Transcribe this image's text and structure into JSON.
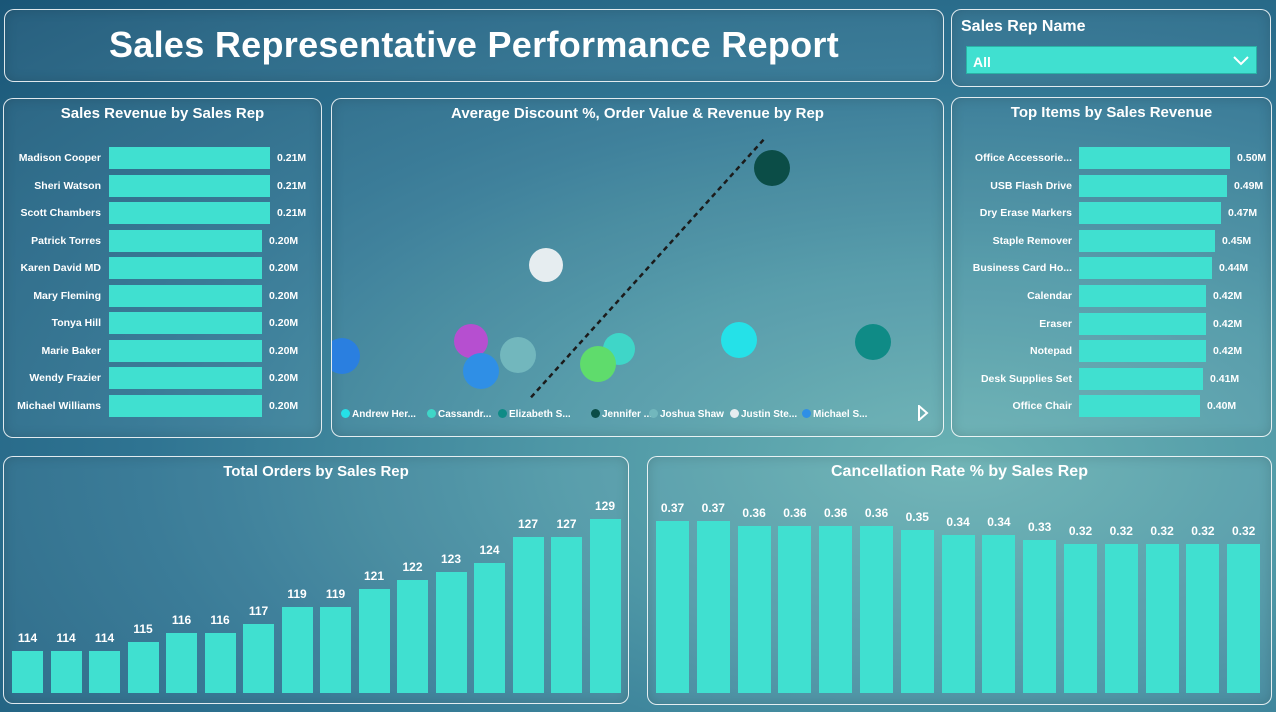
{
  "header": {
    "title": "Sales Representative Performance Report"
  },
  "slicer": {
    "label": "Sales Rep Name",
    "selected": "All"
  },
  "revenue_chart": {
    "title": "Sales Revenue by Sales Rep",
    "rows": [
      {
        "name": "Madison Cooper",
        "value": 0.21,
        "label": "0.21M"
      },
      {
        "name": "Sheri Watson",
        "value": 0.21,
        "label": "0.21M"
      },
      {
        "name": "Scott Chambers",
        "value": 0.21,
        "label": "0.21M"
      },
      {
        "name": "Patrick Torres",
        "value": 0.2,
        "label": "0.20M"
      },
      {
        "name": "Karen David MD",
        "value": 0.2,
        "label": "0.20M"
      },
      {
        "name": "Mary Fleming",
        "value": 0.2,
        "label": "0.20M"
      },
      {
        "name": "Tonya Hill",
        "value": 0.2,
        "label": "0.20M"
      },
      {
        "name": "Marie Baker",
        "value": 0.2,
        "label": "0.20M"
      },
      {
        "name": "Wendy Frazier",
        "value": 0.2,
        "label": "0.20M"
      },
      {
        "name": "Michael Williams",
        "value": 0.2,
        "label": "0.20M"
      }
    ]
  },
  "scatter_chart": {
    "title": "Average Discount %, Order Value & Revenue by Rep",
    "legend": [
      {
        "name": "Andrew Her...",
        "color": "#25e1e8"
      },
      {
        "name": "Cassandr...",
        "color": "#3fd6c8"
      },
      {
        "name": "Elizabeth S...",
        "color": "#0f8b86"
      },
      {
        "name": "Jennifer ...",
        "color": "#0b4d47"
      },
      {
        "name": "Joshua Shaw",
        "color": "#72b7bd"
      },
      {
        "name": "Justin Ste...",
        "color": "#e6edf0"
      },
      {
        "name": "Michael S...",
        "color": "#2f8fe6"
      }
    ]
  },
  "items_chart": {
    "title": "Top Items by Sales Revenue",
    "rows": [
      {
        "name": "Office Accessorie...",
        "value": 0.5,
        "label": "0.50M"
      },
      {
        "name": "USB Flash Drive",
        "value": 0.49,
        "label": "0.49M"
      },
      {
        "name": "Dry Erase Markers",
        "value": 0.47,
        "label": "0.47M"
      },
      {
        "name": "Staple Remover",
        "value": 0.45,
        "label": "0.45M"
      },
      {
        "name": "Business Card Ho...",
        "value": 0.44,
        "label": "0.44M"
      },
      {
        "name": "Calendar",
        "value": 0.42,
        "label": "0.42M"
      },
      {
        "name": "Eraser",
        "value": 0.42,
        "label": "0.42M"
      },
      {
        "name": "Notepad",
        "value": 0.42,
        "label": "0.42M"
      },
      {
        "name": "Desk Supplies Set",
        "value": 0.41,
        "label": "0.41M"
      },
      {
        "name": "Office Chair",
        "value": 0.4,
        "label": "0.40M"
      }
    ]
  },
  "orders_chart": {
    "title": "Total Orders by Sales Rep",
    "values": [
      114,
      114,
      114,
      115,
      116,
      116,
      117,
      119,
      119,
      121,
      122,
      123,
      124,
      127,
      127,
      129
    ]
  },
  "cancel_chart": {
    "title": "Cancellation Rate % by Sales Rep",
    "values": [
      0.37,
      0.37,
      0.36,
      0.36,
      0.36,
      0.36,
      0.35,
      0.34,
      0.34,
      0.33,
      0.32,
      0.32,
      0.32,
      0.32,
      0.32
    ]
  },
  "chart_data": [
    {
      "type": "bar",
      "title": "Sales Revenue by Sales Rep",
      "orientation": "horizontal",
      "categories": [
        "Madison Cooper",
        "Sheri Watson",
        "Scott Chambers",
        "Patrick Torres",
        "Karen David MD",
        "Mary Fleming",
        "Tonya Hill",
        "Marie Baker",
        "Wendy Frazier",
        "Michael Williams"
      ],
      "values": [
        0.21,
        0.21,
        0.21,
        0.2,
        0.2,
        0.2,
        0.2,
        0.2,
        0.2,
        0.2
      ]
    },
    {
      "type": "scatter",
      "title": "Average Discount %, Order Value & Revenue by Rep",
      "series": [
        {
          "name": "Andrew Her..."
        },
        {
          "name": "Cassandr..."
        },
        {
          "name": "Elizabeth S..."
        },
        {
          "name": "Jennifer ..."
        },
        {
          "name": "Joshua Shaw"
        },
        {
          "name": "Justin Ste..."
        },
        {
          "name": "Michael S..."
        }
      ],
      "trendline": true
    },
    {
      "type": "bar",
      "title": "Top Items by Sales Revenue",
      "orientation": "horizontal",
      "categories": [
        "Office Accessorie...",
        "USB Flash Drive",
        "Dry Erase Markers",
        "Staple Remover",
        "Business Card Ho...",
        "Calendar",
        "Eraser",
        "Notepad",
        "Desk Supplies Set",
        "Office Chair"
      ],
      "values": [
        0.5,
        0.49,
        0.47,
        0.45,
        0.44,
        0.42,
        0.42,
        0.42,
        0.41,
        0.4
      ]
    },
    {
      "type": "bar",
      "title": "Total Orders by Sales Rep",
      "values": [
        114,
        114,
        114,
        115,
        116,
        116,
        117,
        119,
        119,
        121,
        122,
        123,
        124,
        127,
        127,
        129
      ]
    },
    {
      "type": "bar",
      "title": "Cancellation Rate % by Sales Rep",
      "values": [
        0.37,
        0.37,
        0.36,
        0.36,
        0.36,
        0.36,
        0.35,
        0.34,
        0.34,
        0.33,
        0.32,
        0.32,
        0.32,
        0.32,
        0.32
      ]
    }
  ]
}
